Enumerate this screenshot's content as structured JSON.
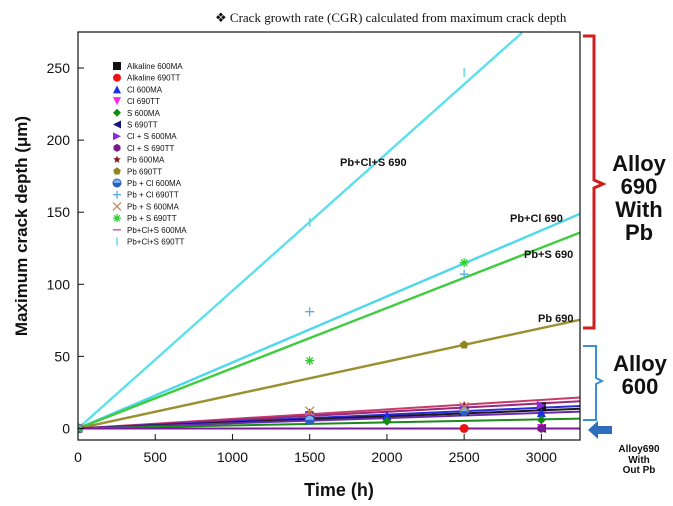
{
  "header": {
    "title": "❖ Crack growth rate (CGR) calculated from maximum crack depth"
  },
  "annotations": {
    "alloy690_pb": [
      "Alloy",
      "690",
      "With",
      "Pb"
    ],
    "alloy600": [
      "Alloy",
      "600"
    ],
    "alloy690_no_pb": [
      "Alloy690",
      "With",
      "Out Pb"
    ]
  },
  "colors": {
    "bracket_red": "#d01e1e",
    "bracket_blue": "#3a8fd8",
    "arrow_blue": "#2e6fbd"
  },
  "chart_data": {
    "type": "scatter",
    "xlabel": "Time (h)",
    "ylabel": "Maximum crack depth (μm)",
    "xlim": [
      0,
      3250
    ],
    "ylim": [
      -8,
      275
    ],
    "xticks": [
      0,
      500,
      1000,
      1500,
      2000,
      2500,
      3000
    ],
    "yticks": [
      0,
      50,
      100,
      150,
      200,
      250
    ],
    "legend_position": "top-left",
    "series": [
      {
        "name": "Alkaline 600MA",
        "marker": "square",
        "color": "#111111",
        "x": [
          0,
          1500,
          2500,
          3000
        ],
        "y": [
          0,
          8,
          12,
          15
        ]
      },
      {
        "name": "Alkaline 690TT",
        "marker": "circle",
        "color": "#ee1111",
        "x": [
          0,
          2500
        ],
        "y": [
          0,
          0
        ]
      },
      {
        "name": "Cl 600MA",
        "marker": "triangle-up",
        "color": "#1a2ee6",
        "x": [
          0,
          1500,
          2000,
          3000
        ],
        "y": [
          0,
          7,
          9,
          11
        ]
      },
      {
        "name": "Cl 690TT",
        "marker": "triangle-down",
        "color": "#ff22ee",
        "x": [
          0,
          3000
        ],
        "y": [
          0,
          0
        ]
      },
      {
        "name": "S 600MA",
        "marker": "diamond",
        "color": "#138a13",
        "x": [
          0,
          2000,
          3000
        ],
        "y": [
          0,
          5,
          6
        ]
      },
      {
        "name": "S 690TT",
        "marker": "triangle-left",
        "color": "#14147a",
        "x": [
          0,
          3000
        ],
        "y": [
          0,
          0
        ]
      },
      {
        "name": "Cl + S 600MA",
        "marker": "triangle-right",
        "color": "#8a2be2",
        "x": [
          0,
          1500,
          2500,
          3000
        ],
        "y": [
          0,
          9,
          14,
          16
        ]
      },
      {
        "name": "Cl + S 690TT",
        "marker": "hexagon",
        "color": "#7a1a8a",
        "x": [
          0,
          3000
        ],
        "y": [
          0,
          0
        ]
      },
      {
        "name": "Pb 600MA",
        "marker": "star",
        "color": "#8b1a1a",
        "x": [
          0,
          1500,
          2500
        ],
        "y": [
          0,
          11,
          16
        ]
      },
      {
        "name": "Pb 690TT",
        "marker": "pentagon",
        "color": "#8d8520",
        "x": [
          0,
          2500
        ],
        "y": [
          0,
          58
        ]
      },
      {
        "name": "Pb + Cl 600MA",
        "marker": "circle-half",
        "color": "#2a5fbf",
        "x": [
          0,
          1500,
          2500
        ],
        "y": [
          0,
          6,
          12
        ]
      },
      {
        "name": "Pb + Cl 690TT",
        "marker": "plus",
        "color": "#5aaedc",
        "x": [
          0,
          1500,
          2500
        ],
        "y": [
          0,
          81,
          107
        ]
      },
      {
        "name": "Pb + S 600MA",
        "marker": "x",
        "color": "#c88a5a",
        "x": [
          0,
          1500,
          2500
        ],
        "y": [
          0,
          12,
          15
        ]
      },
      {
        "name": "Pb + S 690TT",
        "marker": "asterisk",
        "color": "#33cc33",
        "x": [
          0,
          1500,
          2500
        ],
        "y": [
          0,
          47,
          115
        ]
      },
      {
        "name": "Pb+Cl+S 600MA",
        "marker": "dash",
        "color": "#d65ab0",
        "x": [
          0,
          1500,
          2500
        ],
        "y": [
          0,
          10,
          16
        ]
      },
      {
        "name": "Pb+Cl+S 690TT",
        "marker": "vbar",
        "color": "#66d8e8",
        "x": [
          0,
          1500,
          2500
        ],
        "y": [
          0,
          143,
          247
        ]
      }
    ],
    "fit_lines": [
      {
        "label": "Pb+Cl+S 690",
        "color": "#5ce0ec",
        "slope": 0.0955,
        "x_end": 2875
      },
      {
        "label": "Pb+Cl 690",
        "color": "#4ed8ec",
        "slope": 0.0458,
        "x_end": 3250
      },
      {
        "label": "Pb+S 690",
        "color": "#3dcc3d",
        "slope": 0.0418,
        "x_end": 3250
      },
      {
        "label": "Pb 690",
        "color": "#9a9030",
        "slope": 0.0232,
        "x_end": 3250
      },
      {
        "label": "",
        "color": "#c83a6a",
        "slope": 0.0066,
        "x_end": 3250
      },
      {
        "label": "",
        "color": "#9a2a7a",
        "slope": 0.0058,
        "x_end": 3250
      },
      {
        "label": "",
        "color": "#2a2ad8",
        "slope": 0.0048,
        "x_end": 3250
      },
      {
        "label": "",
        "color": "#1a1a1a",
        "slope": 0.0042,
        "x_end": 3250
      },
      {
        "label": "",
        "color": "#6a2ab0",
        "slope": 0.0036,
        "x_end": 3250
      },
      {
        "label": "",
        "color": "#1a8a1a",
        "slope": 0.0021,
        "x_end": 3250
      },
      {
        "label": "",
        "color": "#7a1a9a",
        "slope": 0.0,
        "x_end": 3250
      }
    ]
  }
}
